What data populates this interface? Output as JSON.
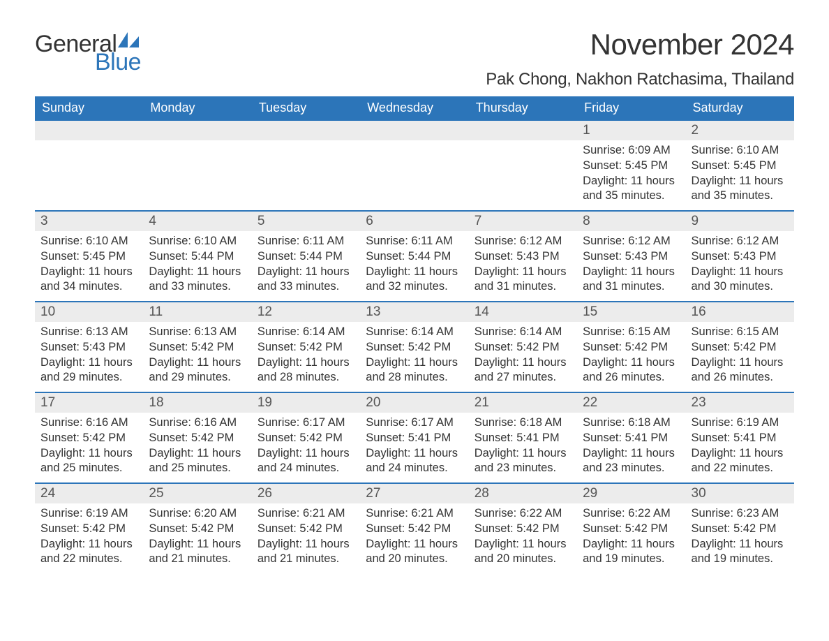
{
  "colors": {
    "header_blue": "#2c75b9",
    "daynum_bg": "#ececec",
    "text_dark": "#333333",
    "text_gray": "#555555",
    "white": "#ffffff"
  },
  "logo": {
    "word1": "General",
    "word2": "Blue"
  },
  "title": "November 2024",
  "location": "Pak Chong, Nakhon Ratchasima, Thailand",
  "day_names": [
    "Sunday",
    "Monday",
    "Tuesday",
    "Wednesday",
    "Thursday",
    "Friday",
    "Saturday"
  ],
  "weeks": [
    [
      null,
      null,
      null,
      null,
      null,
      {
        "n": "1",
        "sunrise": "Sunrise: 6:09 AM",
        "sunset": "Sunset: 5:45 PM",
        "daylight": "Daylight: 11 hours and 35 minutes."
      },
      {
        "n": "2",
        "sunrise": "Sunrise: 6:10 AM",
        "sunset": "Sunset: 5:45 PM",
        "daylight": "Daylight: 11 hours and 35 minutes."
      }
    ],
    [
      {
        "n": "3",
        "sunrise": "Sunrise: 6:10 AM",
        "sunset": "Sunset: 5:45 PM",
        "daylight": "Daylight: 11 hours and 34 minutes."
      },
      {
        "n": "4",
        "sunrise": "Sunrise: 6:10 AM",
        "sunset": "Sunset: 5:44 PM",
        "daylight": "Daylight: 11 hours and 33 minutes."
      },
      {
        "n": "5",
        "sunrise": "Sunrise: 6:11 AM",
        "sunset": "Sunset: 5:44 PM",
        "daylight": "Daylight: 11 hours and 33 minutes."
      },
      {
        "n": "6",
        "sunrise": "Sunrise: 6:11 AM",
        "sunset": "Sunset: 5:44 PM",
        "daylight": "Daylight: 11 hours and 32 minutes."
      },
      {
        "n": "7",
        "sunrise": "Sunrise: 6:12 AM",
        "sunset": "Sunset: 5:43 PM",
        "daylight": "Daylight: 11 hours and 31 minutes."
      },
      {
        "n": "8",
        "sunrise": "Sunrise: 6:12 AM",
        "sunset": "Sunset: 5:43 PM",
        "daylight": "Daylight: 11 hours and 31 minutes."
      },
      {
        "n": "9",
        "sunrise": "Sunrise: 6:12 AM",
        "sunset": "Sunset: 5:43 PM",
        "daylight": "Daylight: 11 hours and 30 minutes."
      }
    ],
    [
      {
        "n": "10",
        "sunrise": "Sunrise: 6:13 AM",
        "sunset": "Sunset: 5:43 PM",
        "daylight": "Daylight: 11 hours and 29 minutes."
      },
      {
        "n": "11",
        "sunrise": "Sunrise: 6:13 AM",
        "sunset": "Sunset: 5:42 PM",
        "daylight": "Daylight: 11 hours and 29 minutes."
      },
      {
        "n": "12",
        "sunrise": "Sunrise: 6:14 AM",
        "sunset": "Sunset: 5:42 PM",
        "daylight": "Daylight: 11 hours and 28 minutes."
      },
      {
        "n": "13",
        "sunrise": "Sunrise: 6:14 AM",
        "sunset": "Sunset: 5:42 PM",
        "daylight": "Daylight: 11 hours and 28 minutes."
      },
      {
        "n": "14",
        "sunrise": "Sunrise: 6:14 AM",
        "sunset": "Sunset: 5:42 PM",
        "daylight": "Daylight: 11 hours and 27 minutes."
      },
      {
        "n": "15",
        "sunrise": "Sunrise: 6:15 AM",
        "sunset": "Sunset: 5:42 PM",
        "daylight": "Daylight: 11 hours and 26 minutes."
      },
      {
        "n": "16",
        "sunrise": "Sunrise: 6:15 AM",
        "sunset": "Sunset: 5:42 PM",
        "daylight": "Daylight: 11 hours and 26 minutes."
      }
    ],
    [
      {
        "n": "17",
        "sunrise": "Sunrise: 6:16 AM",
        "sunset": "Sunset: 5:42 PM",
        "daylight": "Daylight: 11 hours and 25 minutes."
      },
      {
        "n": "18",
        "sunrise": "Sunrise: 6:16 AM",
        "sunset": "Sunset: 5:42 PM",
        "daylight": "Daylight: 11 hours and 25 minutes."
      },
      {
        "n": "19",
        "sunrise": "Sunrise: 6:17 AM",
        "sunset": "Sunset: 5:42 PM",
        "daylight": "Daylight: 11 hours and 24 minutes."
      },
      {
        "n": "20",
        "sunrise": "Sunrise: 6:17 AM",
        "sunset": "Sunset: 5:41 PM",
        "daylight": "Daylight: 11 hours and 24 minutes."
      },
      {
        "n": "21",
        "sunrise": "Sunrise: 6:18 AM",
        "sunset": "Sunset: 5:41 PM",
        "daylight": "Daylight: 11 hours and 23 minutes."
      },
      {
        "n": "22",
        "sunrise": "Sunrise: 6:18 AM",
        "sunset": "Sunset: 5:41 PM",
        "daylight": "Daylight: 11 hours and 23 minutes."
      },
      {
        "n": "23",
        "sunrise": "Sunrise: 6:19 AM",
        "sunset": "Sunset: 5:41 PM",
        "daylight": "Daylight: 11 hours and 22 minutes."
      }
    ],
    [
      {
        "n": "24",
        "sunrise": "Sunrise: 6:19 AM",
        "sunset": "Sunset: 5:42 PM",
        "daylight": "Daylight: 11 hours and 22 minutes."
      },
      {
        "n": "25",
        "sunrise": "Sunrise: 6:20 AM",
        "sunset": "Sunset: 5:42 PM",
        "daylight": "Daylight: 11 hours and 21 minutes."
      },
      {
        "n": "26",
        "sunrise": "Sunrise: 6:21 AM",
        "sunset": "Sunset: 5:42 PM",
        "daylight": "Daylight: 11 hours and 21 minutes."
      },
      {
        "n": "27",
        "sunrise": "Sunrise: 6:21 AM",
        "sunset": "Sunset: 5:42 PM",
        "daylight": "Daylight: 11 hours and 20 minutes."
      },
      {
        "n": "28",
        "sunrise": "Sunrise: 6:22 AM",
        "sunset": "Sunset: 5:42 PM",
        "daylight": "Daylight: 11 hours and 20 minutes."
      },
      {
        "n": "29",
        "sunrise": "Sunrise: 6:22 AM",
        "sunset": "Sunset: 5:42 PM",
        "daylight": "Daylight: 11 hours and 19 minutes."
      },
      {
        "n": "30",
        "sunrise": "Sunrise: 6:23 AM",
        "sunset": "Sunset: 5:42 PM",
        "daylight": "Daylight: 11 hours and 19 minutes."
      }
    ]
  ]
}
